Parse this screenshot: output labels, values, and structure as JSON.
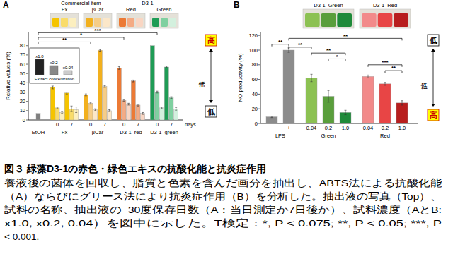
{
  "chart_data": [
    {
      "type": "bar",
      "title": "A",
      "y_label": "Relative values (%)",
      "categories": [
        null,
        "0",
        "7",
        "0",
        "7",
        "0",
        "7",
        "0",
        "7"
      ],
      "groups": [
        {
          "label": "EtOH",
          "size": 1
        },
        {
          "label": "Fx",
          "size": 2
        },
        {
          "label": "βCar",
          "size": 2
        },
        {
          "label": "D3-1_red",
          "size": 2
        },
        {
          "label": "D3-1_green",
          "size": 2
        }
      ],
      "series": [
        {
          "name": "x1.0",
          "color": "#222222",
          "values": [
            7,
            35,
            29,
            27,
            75,
            56,
            42,
            80,
            57
          ],
          "errors": [
            null,
            1.5,
            1,
            1,
            1,
            1.5,
            1,
            null,
            1
          ],
          "colors": [
            "#7f7f7f",
            "#f5c400",
            "#f5c400",
            "#f2b01e",
            "#f2b01e",
            "#ec7a35",
            "#ec7a35",
            "#1e9c55",
            "#1e9c55"
          ]
        },
        {
          "name": "x0.2",
          "color": "#888888",
          "values": [
            null,
            13,
            12,
            18,
            36,
            21,
            16,
            30,
            24
          ],
          "errors": [
            null,
            1,
            3,
            1,
            1,
            1,
            1,
            1,
            1
          ],
          "colors": [
            null,
            "#f9dc6a",
            "#f9dc6a",
            "#f6cd86",
            "#f6cd86",
            "#f4ab84",
            "#f4ab84",
            "#7fd0a0",
            "#7fd0a0"
          ]
        },
        {
          "name": "x0.04",
          "color": "#cccccc",
          "values": [
            null,
            8,
            11,
            11,
            10,
            17,
            7,
            13,
            12
          ],
          "errors": [
            null,
            1,
            3,
            1,
            1,
            1,
            1,
            1,
            1.5
          ],
          "colors": [
            null,
            "#fcefbf",
            "#fcefbf",
            "#fbe7c9",
            "#fbe7c9",
            "#f9d6c3",
            "#f9d6c3",
            "#d3f0de",
            "#d3f0de"
          ]
        }
      ],
      "ylim": [
        0,
        95
      ],
      "yticks": [
        0,
        10,
        20,
        30,
        40,
        50,
        60,
        70,
        80
      ],
      "legend_title": "Extract concentration",
      "annotations": {
        "days": "days",
        "high": "高",
        "low": "低",
        "activity": "活性"
      },
      "photo_groups": [
        {
          "label": "Commercial item",
          "size": 2
        },
        {
          "label": "D3-1",
          "size": 2
        }
      ],
      "photos": [
        "Fx",
        "βCar",
        "Red",
        "Green"
      ],
      "significance": [
        {
          "from": 0,
          "to": 3,
          "y": 84,
          "label": "**"
        },
        {
          "from": 0,
          "to": 5,
          "y": 89,
          "label": "*"
        },
        {
          "from": 0,
          "to": 7,
          "y": 94,
          "label": "***"
        }
      ]
    },
    {
      "type": "bar",
      "title": "B",
      "y_label": "NO productivity (%)",
      "categories": [
        "−",
        "+",
        "0.04",
        "0.2",
        "1.0",
        "0.04",
        "0.2",
        "1.0"
      ],
      "groups": [
        {
          "label": "LPS",
          "size": 2
        },
        {
          "label": "Green",
          "size": 3
        },
        {
          "label": "Red",
          "size": 3
        }
      ],
      "values": [
        9,
        100,
        62,
        37,
        15,
        64,
        54,
        28
      ],
      "errors": [
        1,
        3,
        5,
        8,
        3,
        2,
        2,
        3
      ],
      "colors": [
        "#8c8c8c",
        "#8c8c8c",
        "#8cc152",
        "#5a9e3c",
        "#1f8a3a",
        "#f28a8a",
        "#e84545",
        "#b81e1e"
      ],
      "ylim": [
        0,
        125
      ],
      "yticks": [
        0,
        20,
        40,
        60,
        80,
        100,
        120
      ],
      "annotations": {
        "high": "高",
        "low": "低",
        "activity": "活性"
      },
      "photos": [
        "D3-1_Green",
        "D3-1_Red"
      ],
      "significance": [
        {
          "from": 0,
          "to": 1,
          "y": 108,
          "label": "**"
        },
        {
          "from": 1,
          "to": 7,
          "y": 116,
          "label": "**"
        },
        {
          "from": 1,
          "to": 2,
          "y": 104,
          "label": "**"
        },
        {
          "from": 2,
          "to": 4,
          "y": 96,
          "label": "**"
        },
        {
          "from": 3,
          "to": 4,
          "y": 88,
          "label": "*"
        },
        {
          "from": 5,
          "to": 7,
          "y": 80,
          "label": "***"
        },
        {
          "from": 6,
          "to": 7,
          "y": 72,
          "label": "**"
        }
      ]
    }
  ],
  "caption": {
    "title": "図３ 緑藻D3-1の赤色・緑色エキスの抗酸化能と抗炎症作用",
    "lines": [
      "養液後の菌体を回収し、脂質と色素を含んだ画分を抽出し、ABTS法による抗酸化能",
      "（A）ならびにグリース法により抗炎症作用（B）を分析した。抽出液の写真（Top）、",
      "試料の名称、抽出液の−30度保存日数（A：当日測定か7日後か）、試料濃度（AとB:",
      "x1.0, x0.2, 0.04）を図中に示した。T検定：*, P < 0.075; **, P < 0.05; ***, P",
      "< 0.001."
    ]
  }
}
